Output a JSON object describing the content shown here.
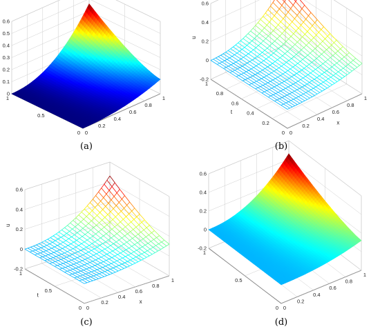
{
  "chart_data": [
    {
      "type": "surface",
      "panel": "(a)",
      "style": "filled",
      "colormap": "jet",
      "xlabel": "",
      "ylabel": "",
      "zlabel": "",
      "x_ticks": [
        "0",
        "0.2",
        "0.4",
        "0.6",
        "0.8",
        "1"
      ],
      "t_ticks": [
        "0",
        "0.5",
        "1"
      ],
      "z_ticks": [
        "0",
        "0.1",
        "0.2",
        "0.3",
        "0.4",
        "0.5",
        "0.6"
      ],
      "xlim": [
        0,
        1
      ],
      "tlim": [
        0,
        1
      ],
      "zlim": [
        0,
        0.6
      ],
      "z_at_corners": {
        "x0_t0": 0,
        "x1_t0": 0.12,
        "x0_t1": 0,
        "x1_t1": 0.46
      },
      "grid": true
    },
    {
      "type": "surface",
      "panel": "(b)",
      "style": "mesh",
      "colormap": "jet",
      "xlabel": "x",
      "ylabel": "t",
      "zlabel": "u",
      "x_ticks": [
        "0",
        "0.2",
        "0.4",
        "0.6",
        "0.8",
        "1"
      ],
      "t_ticks": [
        "0",
        "0.2",
        "0.4",
        "0.6",
        "0.8",
        "1"
      ],
      "z_ticks": [
        "-0.2",
        "0",
        "0.2",
        "0.4",
        "0.6"
      ],
      "xlim": [
        0,
        1
      ],
      "tlim": [
        0,
        1
      ],
      "zlim": [
        -0.2,
        0.6
      ],
      "z_at_corners": {
        "x0_t0": 0,
        "x1_t0": 0.12,
        "x0_t1": 0,
        "x1_t1": 0.46
      },
      "grid": true
    },
    {
      "type": "surface",
      "panel": "(c)",
      "style": "mesh",
      "colormap": "jet",
      "xlabel": "x",
      "ylabel": "t",
      "zlabel": "u",
      "x_ticks": [
        "0",
        "0.2",
        "0.4",
        "0.6",
        "0.8",
        "1"
      ],
      "t_ticks": [
        "0",
        "0.5",
        "1"
      ],
      "z_ticks": [
        "-0.2",
        "0",
        "0.2",
        "0.4",
        "0.6"
      ],
      "xlim": [
        0,
        1
      ],
      "tlim": [
        0,
        1
      ],
      "zlim": [
        -0.2,
        0.6
      ],
      "z_at_corners": {
        "x0_t0": 0,
        "x1_t0": 0.12,
        "x0_t1": 0,
        "x1_t1": 0.46
      },
      "grid": true
    },
    {
      "type": "surface",
      "panel": "(d)",
      "style": "filled",
      "colormap": "jet",
      "xlabel": "",
      "ylabel": "",
      "zlabel": "",
      "x_ticks": [
        "0",
        "0.2",
        "0.4",
        "0.6",
        "0.8",
        "1"
      ],
      "t_ticks": [
        "0",
        "0.5",
        "1"
      ],
      "z_ticks": [
        "-0.2",
        "0",
        "0.2",
        "0.4",
        "0.6"
      ],
      "xlim": [
        0,
        1
      ],
      "tlim": [
        0,
        1
      ],
      "zlim": [
        -0.2,
        0.6
      ],
      "z_at_corners": {
        "x0_t0": 0,
        "x1_t0": 0.12,
        "x0_t1": 0,
        "x1_t1": 0.46
      },
      "grid": true
    }
  ],
  "captions": [
    "(a)",
    "(b)",
    "(c)",
    "(d)"
  ]
}
